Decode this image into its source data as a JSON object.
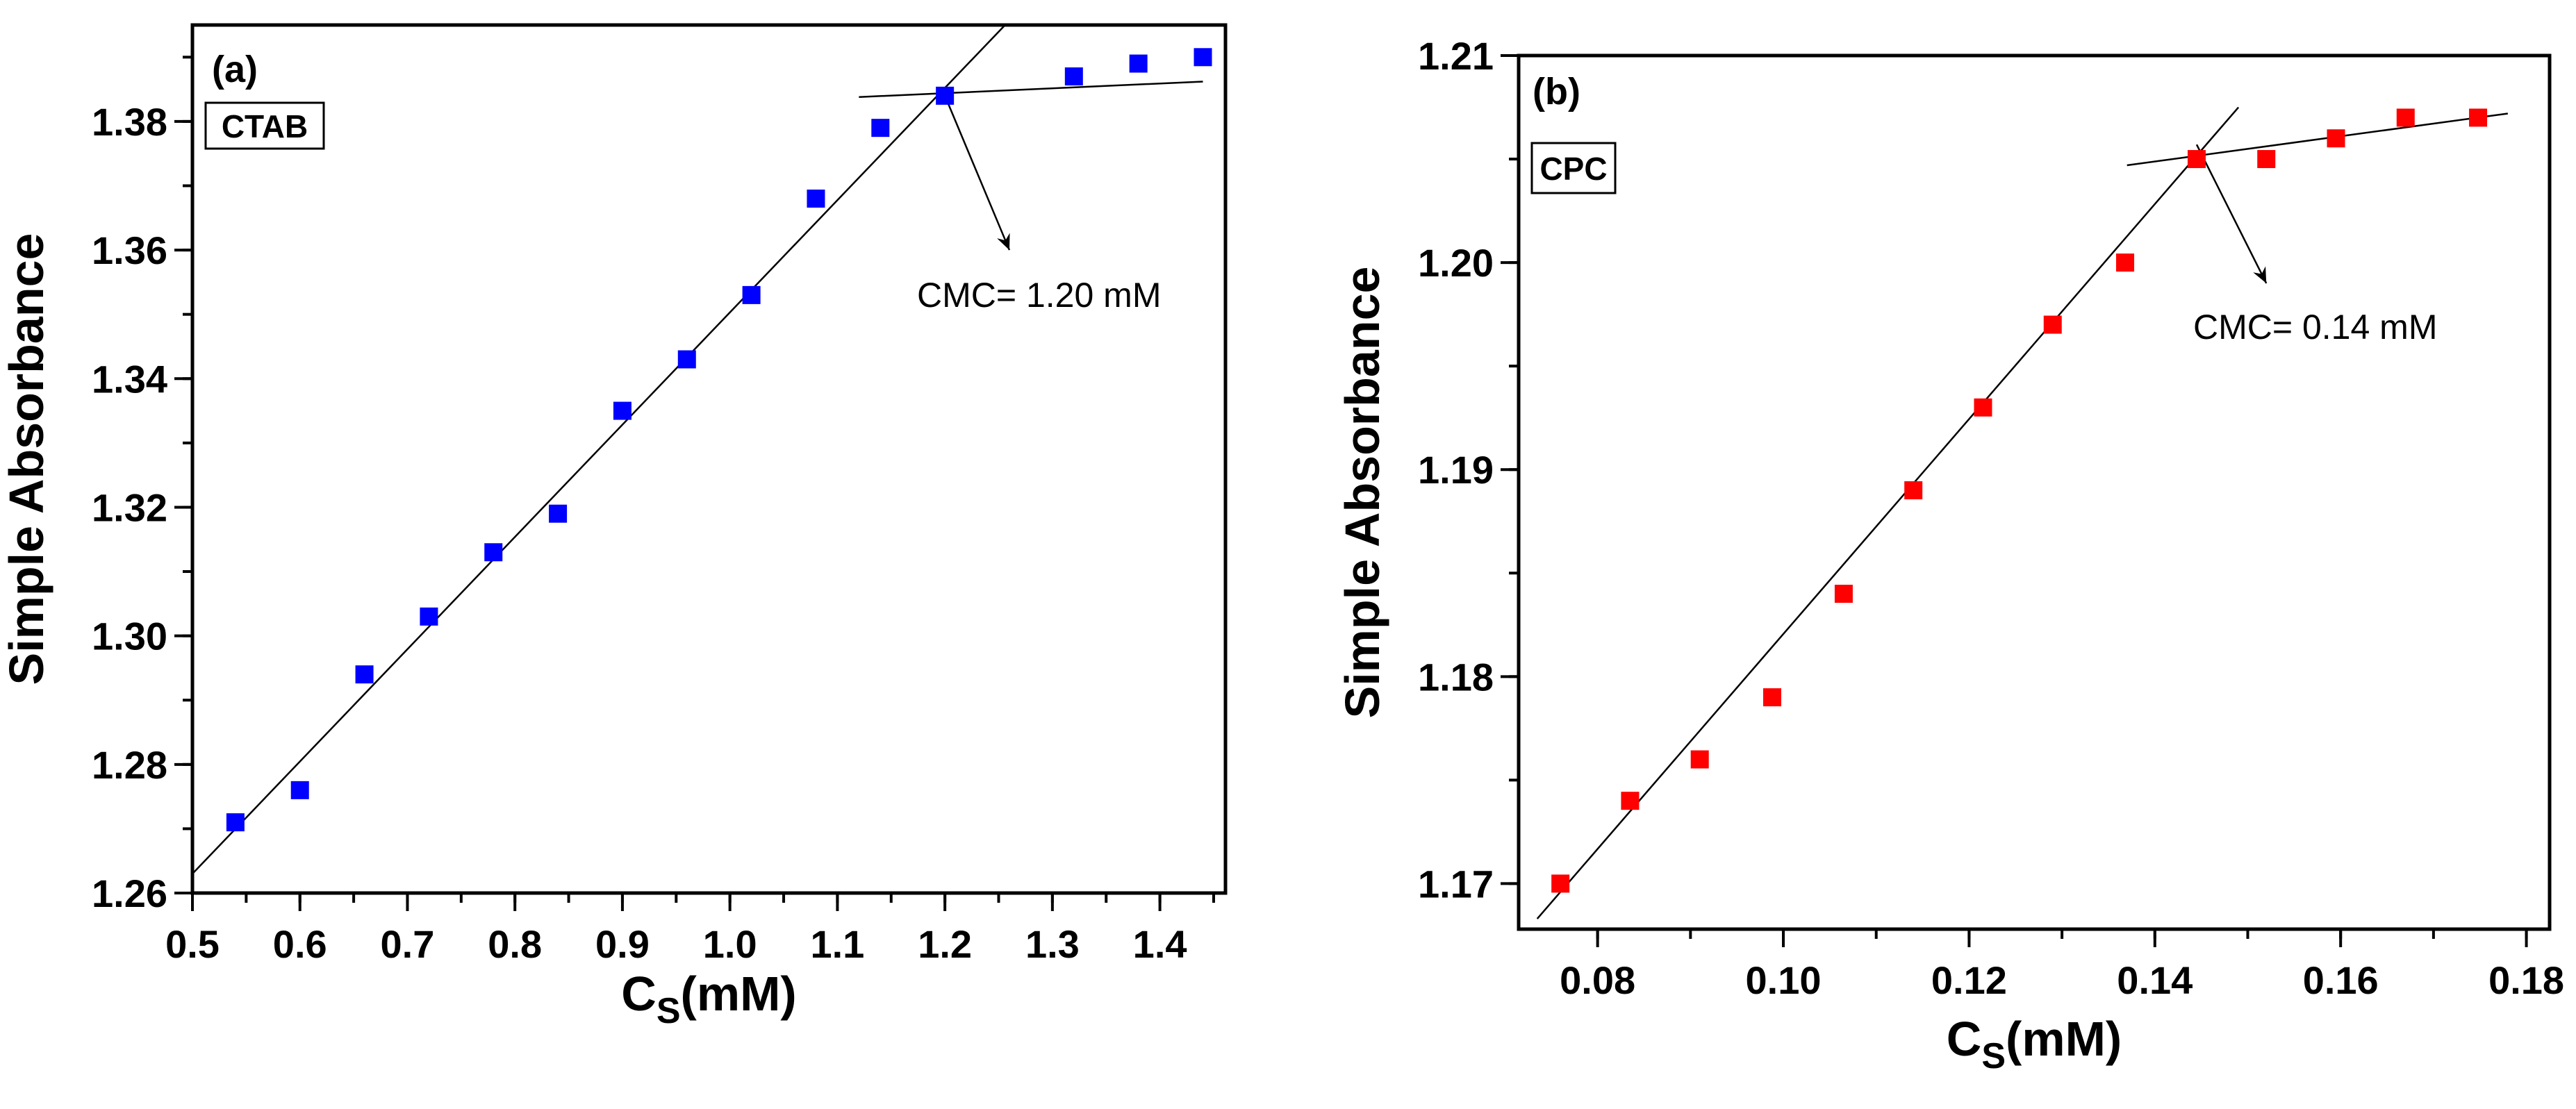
{
  "chart_data": [
    {
      "type": "scatter",
      "panel_label": "(a)",
      "legend": "CTAB",
      "annotation": "CMC= 1.20 mM",
      "xlabel_main": "C",
      "xlabel_sub": "S",
      "xlabel_unit": "(mM)",
      "ylabel": "Simple Absorbance",
      "xlim": [
        0.5,
        1.461
      ],
      "ylim": [
        1.26,
        1.395
      ],
      "xticks": [
        0.5,
        0.6,
        0.7,
        0.8,
        0.9,
        1.0,
        1.1,
        1.2,
        1.3,
        1.4
      ],
      "xtick_labels": [
        "0.5",
        "0.6",
        "0.7",
        "0.8",
        "0.9",
        "1.0",
        "1.1",
        "1.2",
        "1.3",
        "1.4"
      ],
      "xminor": 0.05,
      "yticks": [
        1.26,
        1.28,
        1.3,
        1.32,
        1.34,
        1.36,
        1.38
      ],
      "ytick_labels": [
        "1.26",
        "1.28",
        "1.30",
        "1.32",
        "1.34",
        "1.36",
        "1.38"
      ],
      "yminor": 0.01,
      "marker_color": "#0000ff",
      "x": [
        0.54,
        0.6,
        0.66,
        0.72,
        0.78,
        0.84,
        0.9,
        0.96,
        1.02,
        1.08,
        1.14,
        1.2,
        1.32,
        1.38,
        1.44
      ],
      "y": [
        1.271,
        1.276,
        1.294,
        1.303,
        1.313,
        1.319,
        1.335,
        1.343,
        1.353,
        1.368,
        1.379,
        1.384,
        1.387,
        1.389,
        1.39
      ],
      "fit_lines": [
        [
          [
            0.5,
            1.263
          ],
          [
            1.256,
            1.395
          ]
        ],
        [
          [
            1.12,
            1.3838
          ],
          [
            1.44,
            1.3862
          ]
        ]
      ],
      "arrow": [
        [
          1.2,
          1.384
        ],
        [
          1.26,
          1.36
        ]
      ]
    },
    {
      "type": "scatter",
      "panel_label": "(b)",
      "legend": "CPC",
      "annotation": "CMC= 0.14 mM",
      "xlabel_main": "C",
      "xlabel_sub": "S",
      "xlabel_unit": "(mM)",
      "ylabel": "Simple Absorbance",
      "xlim": [
        0.0715,
        0.1825
      ],
      "ylim": [
        1.1678,
        1.21
      ],
      "xticks": [
        0.08,
        0.1,
        0.12,
        0.14,
        0.16,
        0.18
      ],
      "xtick_labels": [
        "0.08",
        "0.10",
        "0.12",
        "0.14",
        "0.16",
        "0.18"
      ],
      "xminor": 0.01,
      "yticks": [
        1.17,
        1.18,
        1.19,
        1.2,
        1.21
      ],
      "ytick_labels": [
        "1.17",
        "1.18",
        "1.19",
        "1.20",
        "1.21"
      ],
      "yminor": 0.005,
      "marker_color": "#ff0000",
      "x": [
        0.076,
        0.0835,
        0.091,
        0.0988,
        0.1065,
        0.114,
        0.1215,
        0.129,
        0.1368,
        0.1445,
        0.152,
        0.1595,
        0.167,
        0.1748
      ],
      "y": [
        1.17,
        1.174,
        1.176,
        1.179,
        1.184,
        1.189,
        1.193,
        1.197,
        1.2,
        1.205,
        1.205,
        1.206,
        1.207,
        1.207
      ],
      "fit_lines": [
        [
          [
            0.0735,
            1.1683
          ],
          [
            0.149,
            1.2075
          ]
        ],
        [
          [
            0.137,
            1.2047
          ],
          [
            0.178,
            1.2072
          ]
        ]
      ],
      "arrow": [
        [
          0.1445,
          1.2057
        ],
        [
          0.152,
          1.199
        ]
      ]
    }
  ]
}
